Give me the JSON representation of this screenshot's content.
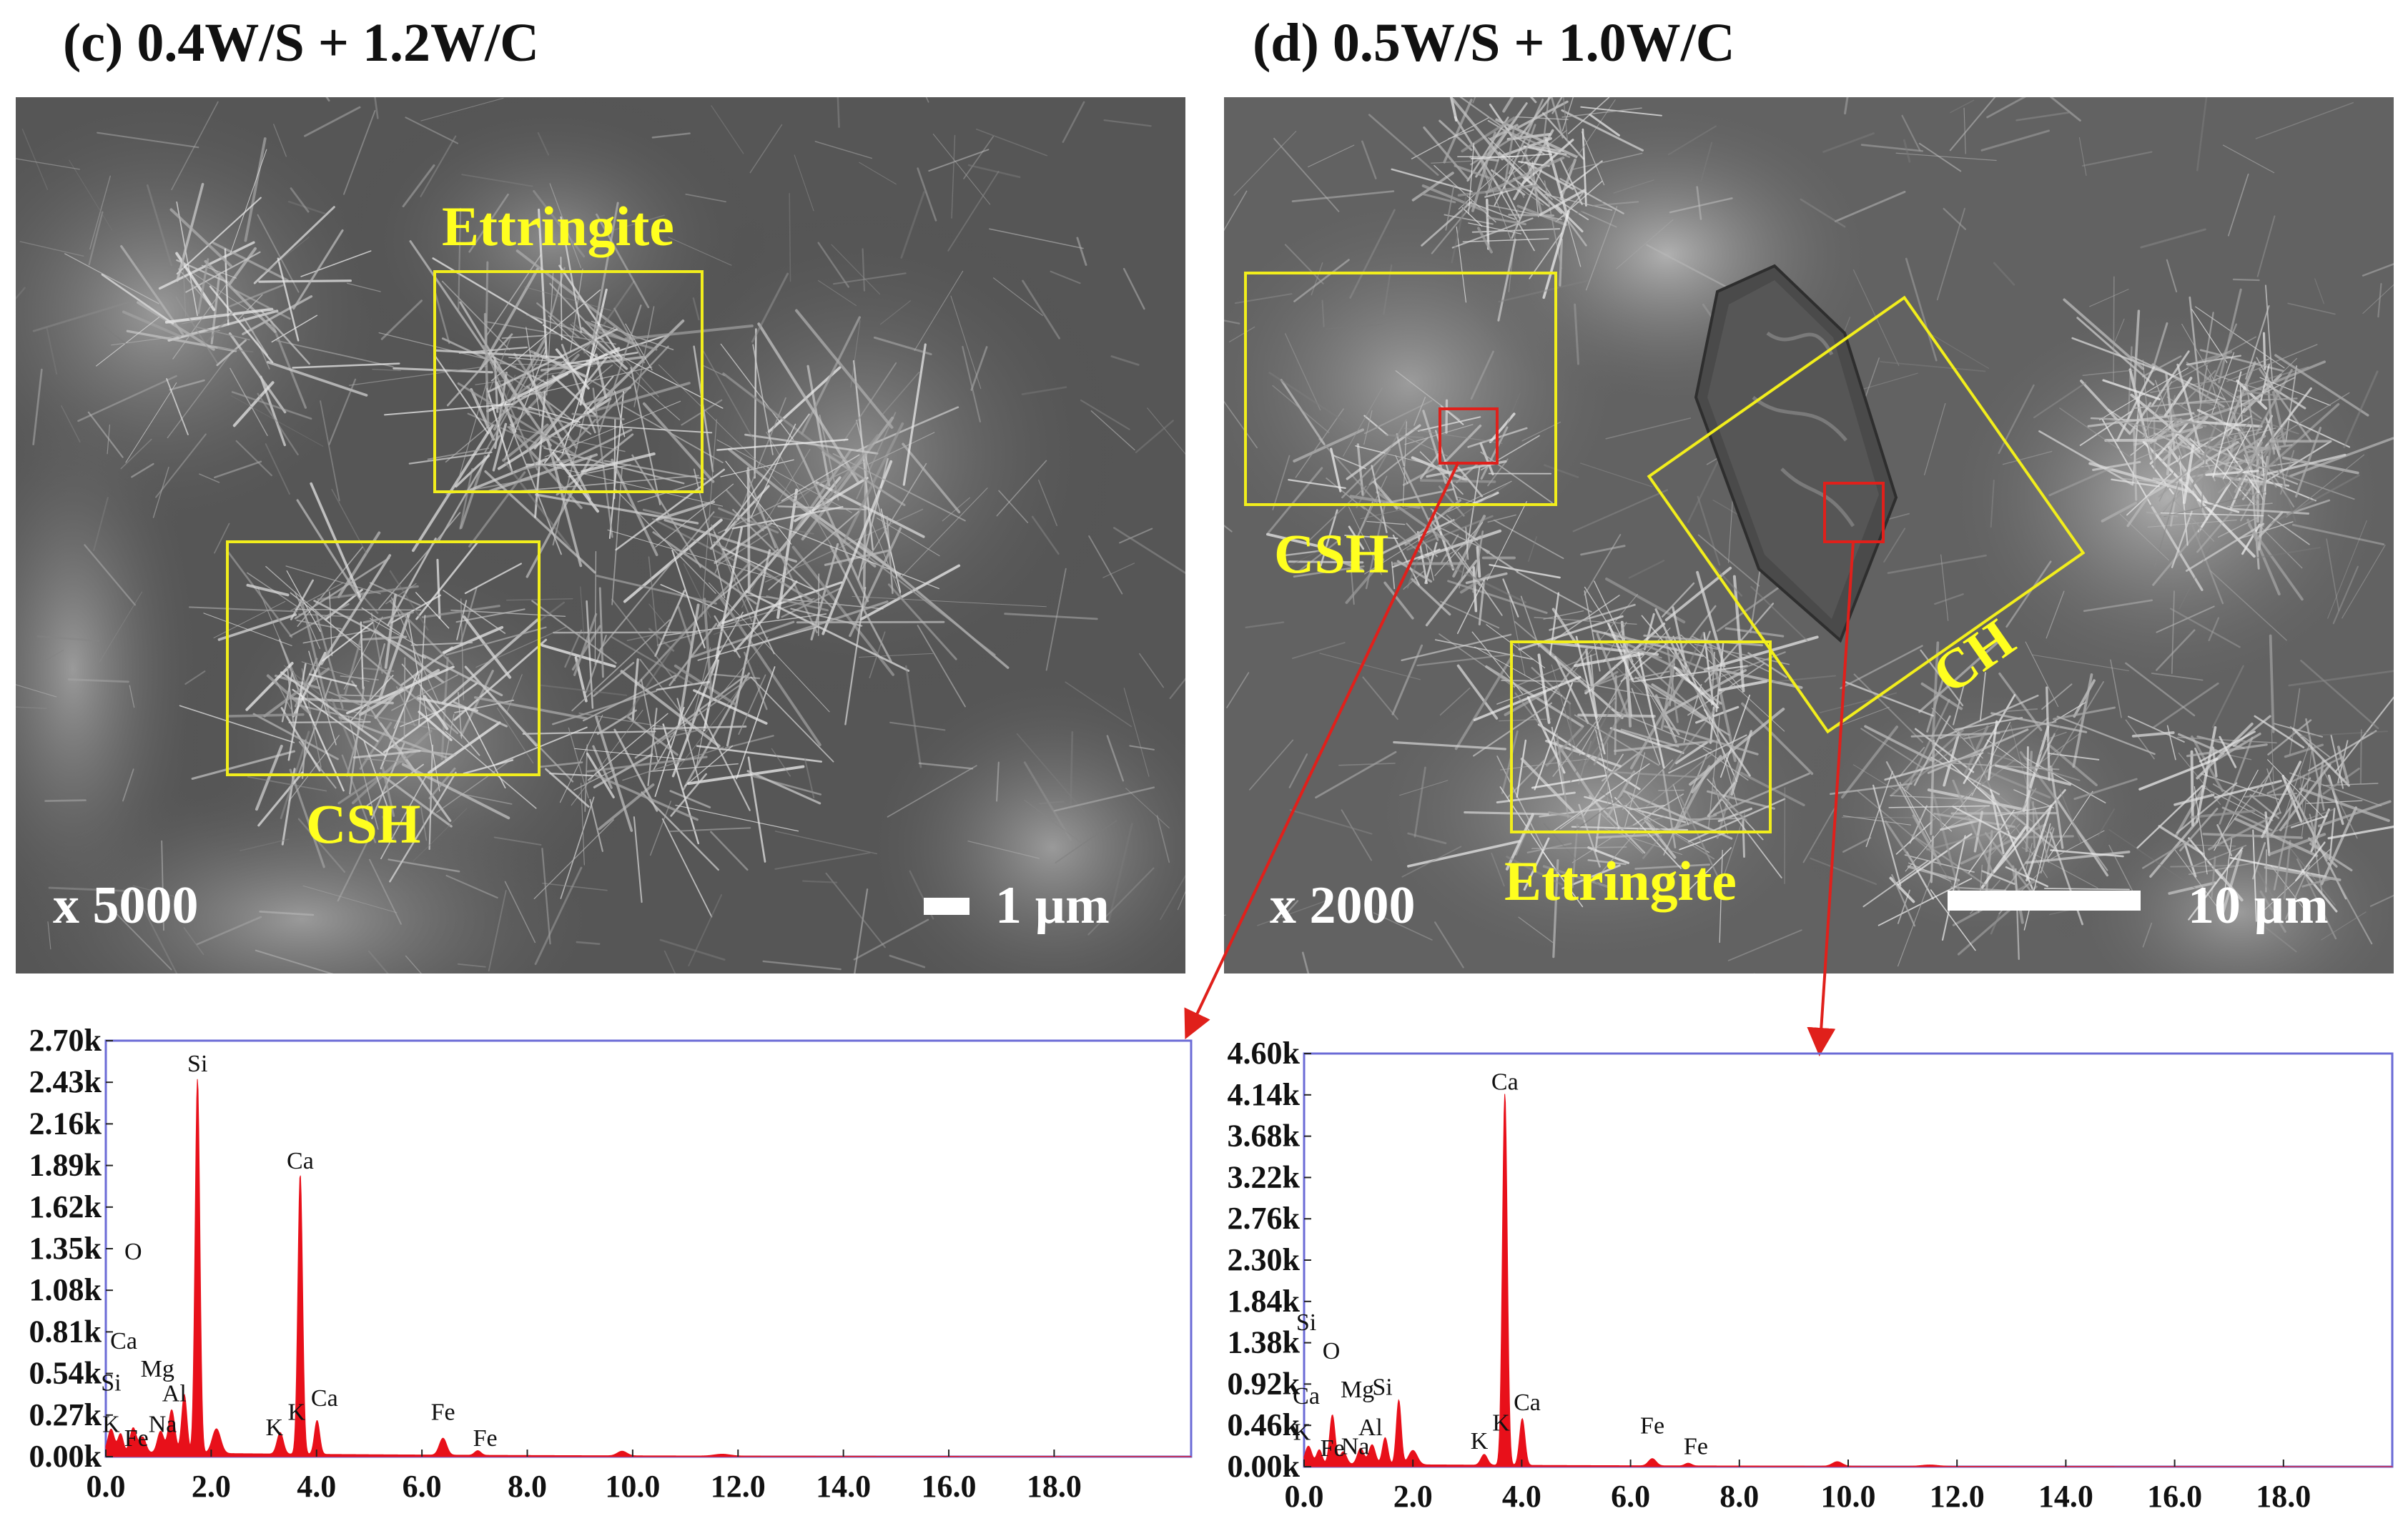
{
  "panel_c": {
    "title": "(c) 0.4W/S + 1.2W/C",
    "magnification": "x  5000",
    "scale_label": "1 µm",
    "labels": {
      "ettringite": "Ettringite",
      "csh": "CSH"
    }
  },
  "panel_d": {
    "title": "(d) 0.5W/S + 1.0W/C",
    "magnification": "x  2000",
    "scale_label": "10 µm",
    "labels": {
      "csh": "CSH",
      "ch": "CH",
      "ettringite": "Ettringite"
    }
  },
  "colors": {
    "label_yellow": "#ffff1f",
    "box_yellow": "#f2ee1c",
    "marker_red": "#e0201b",
    "spectrum_red": "#e8101a",
    "frame_blue": "#6b6bd6"
  },
  "chart_data": [
    {
      "type": "area",
      "xlabel": "",
      "ylabel": "",
      "xlim": [
        0,
        20.6
      ],
      "ylim": [
        0,
        2.7
      ],
      "x_ticks": [
        "0.0",
        "2.0",
        "4.0",
        "6.0",
        "8.0",
        "10.0",
        "12.0",
        "14.0",
        "16.0",
        "18.0"
      ],
      "x_tick_values": [
        0,
        2,
        4,
        6,
        8,
        10,
        12,
        14,
        16,
        18
      ],
      "y_ticks": [
        "0.00k",
        "0.27k",
        "0.54k",
        "0.81k",
        "1.08k",
        "1.35k",
        "1.62k",
        "1.89k",
        "2.16k",
        "2.43k",
        "2.70k"
      ],
      "y_tick_values": [
        0,
        0.27,
        0.54,
        0.81,
        1.08,
        1.35,
        1.62,
        1.89,
        2.16,
        2.43,
        2.7
      ],
      "peaks": [
        {
          "x": 0.1,
          "y": 0.15,
          "w": 0.06
        },
        {
          "x": 0.28,
          "y": 0.12,
          "w": 0.05
        },
        {
          "x": 0.52,
          "y": 0.16,
          "w": 0.06
        },
        {
          "x": 0.7,
          "y": 0.1,
          "w": 0.06
        },
        {
          "x": 1.04,
          "y": 0.14,
          "w": 0.06
        },
        {
          "x": 1.25,
          "y": 0.28,
          "w": 0.06
        },
        {
          "x": 1.49,
          "y": 0.38,
          "w": 0.05
        },
        {
          "x": 1.74,
          "y": 2.43,
          "w": 0.045
        },
        {
          "x": 2.1,
          "y": 0.16,
          "w": 0.08
        },
        {
          "x": 3.31,
          "y": 0.14,
          "w": 0.06
        },
        {
          "x": 3.69,
          "y": 1.82,
          "w": 0.045
        },
        {
          "x": 4.01,
          "y": 0.22,
          "w": 0.05
        },
        {
          "x": 6.4,
          "y": 0.11,
          "w": 0.07
        },
        {
          "x": 7.06,
          "y": 0.03,
          "w": 0.06
        },
        {
          "x": 9.8,
          "y": 0.03,
          "w": 0.09
        },
        {
          "x": 11.7,
          "y": 0.012,
          "w": 0.15
        }
      ],
      "baseline": 0.03,
      "annotations": [
        {
          "text": "Si",
          "x": 1.74,
          "y": 2.5
        },
        {
          "text": "Ca",
          "x": 3.69,
          "y": 1.87
        },
        {
          "text": "O",
          "x": 0.52,
          "y": 1.28
        },
        {
          "text": "Ca",
          "x": 0.34,
          "y": 0.7
        },
        {
          "text": "Mg",
          "x": 0.98,
          "y": 0.52
        },
        {
          "text": "Al",
          "x": 1.3,
          "y": 0.36
        },
        {
          "text": "Si",
          "x": 0.1,
          "y": 0.43
        },
        {
          "text": "K",
          "x": 0.1,
          "y": 0.16
        },
        {
          "text": "Fe",
          "x": 0.58,
          "y": 0.07
        },
        {
          "text": "Na",
          "x": 1.08,
          "y": 0.16
        },
        {
          "text": "K",
          "x": 3.2,
          "y": 0.14
        },
        {
          "text": "K",
          "x": 3.62,
          "y": 0.24
        },
        {
          "text": "Ca",
          "x": 4.15,
          "y": 0.33
        },
        {
          "text": "Fe",
          "x": 6.4,
          "y": 0.24
        },
        {
          "text": "Fe",
          "x": 7.2,
          "y": 0.07
        }
      ]
    },
    {
      "type": "area",
      "xlabel": "",
      "ylabel": "",
      "xlim": [
        0,
        20.0
      ],
      "ylim": [
        0,
        4.6
      ],
      "x_ticks": [
        "0.0",
        "2.0",
        "4.0",
        "6.0",
        "8.0",
        "10.0",
        "12.0",
        "14.0",
        "16.0",
        "18.0"
      ],
      "x_tick_values": [
        0,
        2,
        4,
        6,
        8,
        10,
        12,
        14,
        16,
        18
      ],
      "y_ticks": [
        "0.00k",
        "0.46k",
        "0.92k",
        "1.38k",
        "1.84k",
        "2.30k",
        "2.76k",
        "3.22k",
        "3.68k",
        "4.14k",
        "4.60k"
      ],
      "y_tick_values": [
        0,
        0.46,
        0.92,
        1.38,
        1.84,
        2.3,
        2.76,
        3.22,
        3.68,
        4.14,
        4.6
      ],
      "peaks": [
        {
          "x": 0.08,
          "y": 0.2,
          "w": 0.06
        },
        {
          "x": 0.28,
          "y": 0.16,
          "w": 0.05
        },
        {
          "x": 0.52,
          "y": 0.55,
          "w": 0.05
        },
        {
          "x": 0.72,
          "y": 0.14,
          "w": 0.06
        },
        {
          "x": 1.04,
          "y": 0.18,
          "w": 0.06
        },
        {
          "x": 1.25,
          "y": 0.22,
          "w": 0.06
        },
        {
          "x": 1.49,
          "y": 0.3,
          "w": 0.05
        },
        {
          "x": 1.74,
          "y": 0.72,
          "w": 0.045
        },
        {
          "x": 2.0,
          "y": 0.16,
          "w": 0.08
        },
        {
          "x": 3.31,
          "y": 0.12,
          "w": 0.06
        },
        {
          "x": 3.69,
          "y": 4.14,
          "w": 0.045
        },
        {
          "x": 4.01,
          "y": 0.52,
          "w": 0.05
        },
        {
          "x": 6.4,
          "y": 0.08,
          "w": 0.07
        },
        {
          "x": 7.06,
          "y": 0.03,
          "w": 0.06
        },
        {
          "x": 9.8,
          "y": 0.05,
          "w": 0.09
        },
        {
          "x": 11.5,
          "y": 0.015,
          "w": 0.15
        }
      ],
      "baseline": 0.03,
      "annotations": [
        {
          "text": "Ca",
          "x": 3.69,
          "y": 4.2
        },
        {
          "text": "Si",
          "x": 0.04,
          "y": 1.52
        },
        {
          "text": "O",
          "x": 0.5,
          "y": 1.2
        },
        {
          "text": "Ca",
          "x": 0.04,
          "y": 0.7
        },
        {
          "text": "Mg",
          "x": 0.98,
          "y": 0.77
        },
        {
          "text": "Si",
          "x": 1.44,
          "y": 0.8
        },
        {
          "text": "Al",
          "x": 1.22,
          "y": 0.35
        },
        {
          "text": "K",
          "x": -0.04,
          "y": 0.3
        },
        {
          "text": "Fe",
          "x": 0.52,
          "y": 0.12
        },
        {
          "text": "Na",
          "x": 0.94,
          "y": 0.14
        },
        {
          "text": "K",
          "x": 3.22,
          "y": 0.2
        },
        {
          "text": "K",
          "x": 3.62,
          "y": 0.4
        },
        {
          "text": "Ca",
          "x": 4.1,
          "y": 0.63
        },
        {
          "text": "Fe",
          "x": 6.4,
          "y": 0.37
        },
        {
          "text": "Fe",
          "x": 7.2,
          "y": 0.14
        }
      ]
    }
  ]
}
